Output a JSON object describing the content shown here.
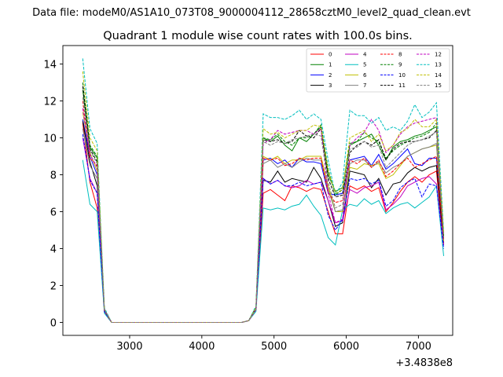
{
  "figure": {
    "suptitle": "Data file: modeM0/AS1A10_073T08_9000004112_28658cztM0_level2_quad_clean.evt"
  },
  "chart_data": {
    "type": "line",
    "title": "Quadrant 1 module wise count rates with 100.0s bins.",
    "xlabel": "",
    "ylabel": "",
    "x_offset_label": "+3.4838e8",
    "xlim": [
      2075,
      7475
    ],
    "ylim": [
      -0.7,
      15.0
    ],
    "x_ticks": [
      3000,
      4000,
      5000,
      6000,
      7000
    ],
    "x_tick_labels": [
      "3000",
      "4000",
      "5000",
      "6000",
      "7000"
    ],
    "y_ticks": [
      0,
      2,
      4,
      6,
      8,
      10,
      12,
      14
    ],
    "y_tick_labels": [
      "0",
      "2",
      "4",
      "6",
      "8",
      "10",
      "12",
      "14"
    ],
    "grid": false,
    "legend_position": "top-right",
    "x": [
      2350,
      2450,
      2550,
      2650,
      2750,
      2850,
      2950,
      3050,
      3150,
      3250,
      3350,
      3450,
      3550,
      3650,
      3750,
      3850,
      3950,
      4050,
      4150,
      4250,
      4350,
      4450,
      4550,
      4650,
      4750,
      4850,
      4950,
      5050,
      5150,
      5250,
      5350,
      5450,
      5550,
      5650,
      5750,
      5850,
      5950,
      6050,
      6150,
      6250,
      6350,
      6450,
      6550,
      6650,
      6750,
      6850,
      6950,
      7050,
      7150,
      7250,
      7350
    ],
    "series": [
      {
        "name": "0",
        "color": "#ff0000",
        "dash": "solid",
        "values": [
          10.8,
          7.6,
          6.2,
          0.6,
          0,
          0,
          0,
          0,
          0,
          0,
          0,
          0,
          0,
          0,
          0,
          0,
          0,
          0,
          0,
          0,
          0,
          0,
          0,
          0.1,
          0.7,
          7.0,
          7.2,
          6.9,
          6.6,
          7.4,
          7.3,
          7.1,
          7.3,
          7.2,
          6.0,
          4.8,
          4.8,
          7.4,
          7.2,
          7.4,
          7.1,
          7.3,
          6.0,
          6.5,
          7.1,
          7.6,
          7.9,
          7.6,
          8.0,
          8.2,
          4.2
        ]
      },
      {
        "name": "1",
        "color": "#008000",
        "dash": "solid",
        "values": [
          12.6,
          9.5,
          8.9,
          0.7,
          0,
          0,
          0,
          0,
          0,
          0,
          0,
          0,
          0,
          0,
          0,
          0,
          0,
          0,
          0,
          0,
          0,
          0,
          0,
          0.1,
          0.8,
          10.0,
          9.8,
          10.1,
          9.6,
          9.3,
          10.0,
          9.8,
          10.2,
          10.6,
          8.0,
          7.1,
          7.3,
          9.6,
          9.8,
          10.0,
          10.2,
          9.6,
          8.8,
          9.5,
          9.8,
          9.9,
          10.1,
          10.2,
          10.4,
          10.6,
          4.6
        ]
      },
      {
        "name": "2",
        "color": "#0000ff",
        "dash": "solid",
        "values": [
          11.0,
          9.0,
          8.0,
          0.6,
          0,
          0,
          0,
          0,
          0,
          0,
          0,
          0,
          0,
          0,
          0,
          0,
          0,
          0,
          0,
          0,
          0,
          0,
          0,
          0.1,
          0.7,
          8.8,
          8.9,
          8.6,
          8.8,
          8.4,
          8.9,
          8.7,
          8.7,
          8.6,
          7.0,
          6.9,
          7.0,
          8.8,
          8.9,
          9.0,
          8.5,
          9.1,
          8.3,
          8.6,
          9.0,
          9.4,
          8.6,
          8.5,
          8.9,
          8.9,
          4.4
        ]
      },
      {
        "name": "3",
        "color": "#000000",
        "dash": "solid",
        "values": [
          10.9,
          8.7,
          7.4,
          0.6,
          0,
          0,
          0,
          0,
          0,
          0,
          0,
          0,
          0,
          0,
          0,
          0,
          0,
          0,
          0,
          0,
          0,
          0,
          0,
          0.1,
          0.7,
          7.7,
          7.6,
          8.2,
          7.6,
          7.8,
          7.7,
          7.6,
          8.4,
          7.8,
          6.6,
          5.2,
          5.4,
          8.2,
          8.1,
          8.0,
          7.3,
          7.8,
          6.9,
          7.5,
          7.6,
          8.1,
          8.4,
          8.2,
          8.4,
          8.5,
          4.3
        ]
      },
      {
        "name": "4",
        "color": "#c000c0",
        "dash": "solid",
        "values": [
          10.0,
          7.8,
          7.0,
          0.6,
          0,
          0,
          0,
          0,
          0,
          0,
          0,
          0,
          0,
          0,
          0,
          0,
          0,
          0,
          0,
          0,
          0,
          0,
          0,
          0.1,
          0.7,
          7.8,
          7.5,
          7.7,
          7.4,
          7.3,
          7.4,
          7.7,
          7.5,
          7.6,
          6.6,
          5.4,
          5.5,
          7.2,
          7.0,
          7.3,
          7.4,
          7.6,
          6.1,
          6.4,
          6.8,
          7.4,
          7.6,
          7.8,
          7.9,
          7.5,
          4.2
        ]
      },
      {
        "name": "5",
        "color": "#00bfbf",
        "dash": "solid",
        "values": [
          8.8,
          6.4,
          6.0,
          0.5,
          0,
          0,
          0,
          0,
          0,
          0,
          0,
          0,
          0,
          0,
          0,
          0,
          0,
          0,
          0,
          0,
          0,
          0,
          0,
          0.1,
          0.6,
          6.2,
          6.1,
          6.2,
          6.1,
          6.3,
          6.4,
          6.9,
          6.3,
          5.8,
          4.6,
          4.2,
          6.1,
          6.4,
          6.3,
          6.7,
          6.4,
          6.6,
          5.9,
          6.2,
          6.4,
          6.5,
          6.2,
          6.5,
          6.8,
          7.4,
          3.6
        ]
      },
      {
        "name": "6",
        "color": "#bfbf00",
        "dash": "solid",
        "values": [
          11.4,
          9.2,
          8.2,
          0.7,
          0,
          0,
          0,
          0,
          0,
          0,
          0,
          0,
          0,
          0,
          0,
          0,
          0,
          0,
          0,
          0,
          0,
          0,
          0,
          0.1,
          0.7,
          9.0,
          8.8,
          9.0,
          8.6,
          8.8,
          8.8,
          9.0,
          9.0,
          9.0,
          7.4,
          6.0,
          6.0,
          8.4,
          8.3,
          8.6,
          8.5,
          8.6,
          7.8,
          8.0,
          8.5,
          9.0,
          9.2,
          9.4,
          9.5,
          9.6,
          4.4
        ]
      },
      {
        "name": "7",
        "color": "#808080",
        "dash": "solid",
        "values": [
          10.5,
          8.5,
          7.8,
          0.6,
          0,
          0,
          0,
          0,
          0,
          0,
          0,
          0,
          0,
          0,
          0,
          0,
          0,
          0,
          0,
          0,
          0,
          0,
          0,
          0.1,
          0.7,
          8.6,
          8.8,
          8.4,
          8.6,
          8.4,
          8.7,
          8.9,
          8.8,
          8.8,
          7.2,
          6.0,
          6.1,
          8.6,
          8.8,
          8.8,
          8.4,
          8.7,
          8.1,
          8.4,
          8.6,
          9.0,
          9.2,
          9.4,
          9.5,
          9.7,
          4.5
        ]
      },
      {
        "name": "8",
        "color": "#ff0000",
        "dash": "dashed",
        "values": [
          12.0,
          8.9,
          8.5,
          0.6,
          0,
          0,
          0,
          0,
          0,
          0,
          0,
          0,
          0,
          0,
          0,
          0,
          0,
          0,
          0,
          0,
          0,
          0,
          0,
          0.1,
          0.7,
          8.9,
          8.8,
          8.9,
          8.5,
          8.6,
          8.9,
          8.8,
          8.9,
          8.9,
          7.0,
          6.5,
          6.6,
          8.8,
          8.6,
          8.9,
          8.4,
          8.8,
          7.9,
          8.2,
          8.6,
          8.9,
          8.4,
          8.6,
          8.8,
          9.0,
          4.5
        ]
      },
      {
        "name": "9",
        "color": "#008000",
        "dash": "dashed",
        "values": [
          13.0,
          9.6,
          9.0,
          0.7,
          0,
          0,
          0,
          0,
          0,
          0,
          0,
          0,
          0,
          0,
          0,
          0,
          0,
          0,
          0,
          0,
          0,
          0,
          0,
          0.1,
          0.8,
          10.0,
          9.9,
          10.2,
          9.8,
          9.6,
          10.0,
          10.0,
          10.2,
          10.7,
          8.3,
          6.9,
          7.2,
          9.7,
          9.8,
          10.3,
          10.0,
          9.8,
          8.9,
          9.3,
          9.6,
          9.8,
          10.0,
          10.1,
          10.3,
          10.8,
          4.6
        ]
      },
      {
        "name": "10",
        "color": "#0000ff",
        "dash": "dashed",
        "values": [
          10.2,
          7.7,
          7.0,
          0.6,
          0,
          0,
          0,
          0,
          0,
          0,
          0,
          0,
          0,
          0,
          0,
          0,
          0,
          0,
          0,
          0,
          0,
          0,
          0,
          0.1,
          0.7,
          7.8,
          7.5,
          7.7,
          7.4,
          7.4,
          7.6,
          7.4,
          7.5,
          7.6,
          5.8,
          5.0,
          5.6,
          7.8,
          7.7,
          7.8,
          7.5,
          7.7,
          6.3,
          6.6,
          7.3,
          7.6,
          7.8,
          6.8,
          7.5,
          7.4,
          4.0
        ]
      },
      {
        "name": "11",
        "color": "#000000",
        "dash": "dashed",
        "values": [
          12.8,
          9.4,
          8.7,
          0.7,
          0,
          0,
          0,
          0,
          0,
          0,
          0,
          0,
          0,
          0,
          0,
          0,
          0,
          0,
          0,
          0,
          0,
          0,
          0,
          0.1,
          0.8,
          9.9,
          9.8,
          9.9,
          9.7,
          9.8,
          10.4,
          10.1,
          10.0,
          10.5,
          7.8,
          6.8,
          6.9,
          9.2,
          9.6,
          9.8,
          9.6,
          9.9,
          8.8,
          9.4,
          9.7,
          9.8,
          9.8,
          9.9,
          10.0,
          10.4,
          4.6
        ]
      },
      {
        "name": "12",
        "color": "#c000c0",
        "dash": "dashed",
        "values": [
          11.6,
          9.1,
          8.4,
          0.7,
          0,
          0,
          0,
          0,
          0,
          0,
          0,
          0,
          0,
          0,
          0,
          0,
          0,
          0,
          0,
          0,
          0,
          0,
          0,
          0.1,
          0.7,
          9.7,
          9.9,
          10.4,
          10.2,
          10.3,
          10.4,
          10.4,
          10.2,
          10.5,
          7.0,
          5.4,
          5.6,
          9.6,
          10.0,
          10.3,
          11.0,
          10.4,
          9.2,
          9.6,
          10.2,
          10.6,
          10.8,
          10.9,
          11.0,
          11.1,
          4.8
        ]
      },
      {
        "name": "13",
        "color": "#00bfbf",
        "dash": "dashed",
        "values": [
          14.3,
          10.5,
          9.7,
          0.8,
          0,
          0,
          0,
          0,
          0,
          0,
          0,
          0,
          0,
          0,
          0,
          0,
          0,
          0,
          0,
          0,
          0,
          0,
          0,
          0.1,
          0.9,
          11.3,
          11.1,
          11.1,
          11.0,
          11.2,
          11.5,
          11.0,
          11.3,
          11.0,
          8.8,
          6.9,
          7.6,
          11.5,
          11.2,
          11.2,
          10.8,
          11.1,
          10.4,
          10.6,
          10.4,
          10.9,
          11.8,
          11.1,
          11.4,
          11.9,
          4.9
        ]
      },
      {
        "name": "14",
        "color": "#bfbf00",
        "dash": "dashed",
        "values": [
          13.6,
          10.0,
          9.3,
          0.7,
          0,
          0,
          0,
          0,
          0,
          0,
          0,
          0,
          0,
          0,
          0,
          0,
          0,
          0,
          0,
          0,
          0,
          0,
          0,
          0.1,
          0.8,
          10.5,
          10.2,
          10.3,
          10.0,
          10.2,
          10.4,
          10.4,
          10.7,
          10.6,
          8.2,
          7.0,
          7.2,
          10.0,
          10.2,
          10.4,
          9.8,
          10.2,
          9.3,
          9.6,
          10.3,
          10.5,
          11.0,
          10.6,
          10.6,
          11.0,
          4.8
        ]
      },
      {
        "name": "15",
        "color": "#808080",
        "dash": "dashed",
        "values": [
          12.2,
          9.3,
          8.6,
          0.7,
          0,
          0,
          0,
          0,
          0,
          0,
          0,
          0,
          0,
          0,
          0,
          0,
          0,
          0,
          0,
          0,
          0,
          0,
          0,
          0.1,
          0.7,
          9.8,
          9.6,
          9.8,
          9.7,
          9.9,
          10.0,
          10.1,
          10.2,
          10.1,
          7.6,
          6.2,
          6.4,
          9.4,
          9.5,
          9.8,
          9.5,
          9.6,
          8.4,
          8.8,
          9.2,
          9.6,
          9.8,
          9.9,
          10.1,
          10.3,
          4.6
        ]
      }
    ]
  }
}
